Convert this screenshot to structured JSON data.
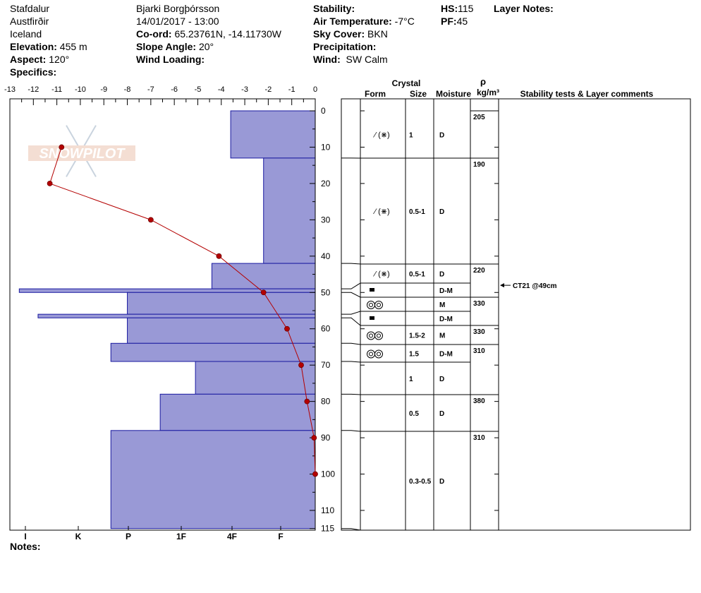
{
  "header": {
    "location": [
      "Stafdalur",
      "Austfirðir",
      "Iceland"
    ],
    "elevation_label": "Elevation:",
    "elevation": "455 m",
    "aspect_label": "Aspect:",
    "aspect": "120°",
    "specifics_label": "Specifics:",
    "observer": "Bjarki Borgþórsson",
    "datetime": "14/01/2017 - 13:00",
    "coord_label": "Co-ord:",
    "coord": "65.23761N, -14.11730W",
    "slope_label": "Slope Angle:",
    "slope": "20°",
    "wind_loading_label": "Wind Loading:",
    "stability_label": "Stability:",
    "air_temp_label": "Air Temperature:",
    "air_temp": "-7°C",
    "sky_label": "Sky Cover:",
    "sky": "BKN",
    "precip_label": "Precipitation:",
    "wind_label": "Wind:",
    "wind": "SW Calm",
    "hs_label": "HS:",
    "hs": "115",
    "pf_label": "PF:",
    "pf": "45",
    "layer_notes_label": "Layer Notes:",
    "notes_label": "Notes:"
  },
  "watermark": "SNOWPILOT",
  "colors": {
    "hardness_fill": "#9999d6",
    "hardness_stroke": "#1a1aa0",
    "temp": "#b40000"
  },
  "table_headers": {
    "crystal": "Crystal",
    "form": "Form",
    "size": "Size",
    "moisture": "Moisture",
    "rho": "ρ",
    "density_unit": "kg/m³",
    "comments": "Stability tests & Layer comments"
  },
  "chart_data": {
    "type": "snow-profile",
    "temp_axis": {
      "ticks": [
        "-13",
        "-12",
        "-11",
        "-10",
        "-9",
        "-8",
        "-7",
        "-6",
        "-5",
        "-4",
        "-3",
        "-2",
        "-1",
        "0"
      ],
      "range": [
        -13,
        0
      ]
    },
    "depth_axis": {
      "ticks": [
        "0",
        "10",
        "20",
        "30",
        "40",
        "50",
        "60",
        "70",
        "80",
        "90",
        "100",
        "110",
        "115"
      ],
      "range": [
        0,
        115
      ]
    },
    "hardness_axis": {
      "labels": [
        "I",
        "K",
        "P",
        "1F",
        "4F",
        "F"
      ]
    },
    "hardness_layers": [
      {
        "top": 0,
        "bottom": 13,
        "hardness": -3.6
      },
      {
        "top": 13,
        "bottom": 42,
        "hardness": -2.2
      },
      {
        "top": 42,
        "bottom": 49,
        "hardness": -4.4
      },
      {
        "top": 49,
        "bottom": 50,
        "hardness": -12.6
      },
      {
        "top": 50,
        "bottom": 56,
        "hardness": -8.0
      },
      {
        "top": 56,
        "bottom": 57,
        "hardness": -11.8
      },
      {
        "top": 57,
        "bottom": 64,
        "hardness": -8.0
      },
      {
        "top": 64,
        "bottom": 69,
        "hardness": -8.7
      },
      {
        "top": 69,
        "bottom": 78,
        "hardness": -5.1
      },
      {
        "top": 78,
        "bottom": 88,
        "hardness": -6.6
      },
      {
        "top": 88,
        "bottom": 115,
        "hardness": -8.7
      }
    ],
    "temperature_profile": [
      {
        "depth": 10,
        "temp": -10.8
      },
      {
        "depth": 20,
        "temp": -11.3
      },
      {
        "depth": 30,
        "temp": -7.0
      },
      {
        "depth": 40,
        "temp": -4.1
      },
      {
        "depth": 50,
        "temp": -2.2
      },
      {
        "depth": 60,
        "temp": -1.2
      },
      {
        "depth": 70,
        "temp": -0.6
      },
      {
        "depth": 80,
        "temp": -0.35
      },
      {
        "depth": 90,
        "temp": -0.05
      },
      {
        "depth": 100,
        "temp": 0
      }
    ],
    "layers": [
      {
        "top": 0,
        "bottom": 13,
        "form": "⁄ (⋇)",
        "size": "1",
        "moisture": "D",
        "density": "205"
      },
      {
        "top": 13,
        "bottom": 42,
        "form": "⁄ (⋇)",
        "size": "0.5-1",
        "moisture": "D",
        "density": "190"
      },
      {
        "top": 42,
        "bottom": 49,
        "form": "⁄ (⋇)",
        "size": "0.5-1",
        "moisture": "D",
        "density": "220"
      },
      {
        "top": 49,
        "bottom": 50,
        "form": "■",
        "size": "",
        "moisture": "D-M",
        "density": ""
      },
      {
        "top": 50,
        "bottom": 56,
        "form": "◎◎",
        "size": "",
        "moisture": "M",
        "density": "330"
      },
      {
        "top": 56,
        "bottom": 57,
        "form": "■",
        "size": "",
        "moisture": "D-M",
        "density": ""
      },
      {
        "top": 57,
        "bottom": 64,
        "form": "◎◎",
        "size": "1.5-2",
        "moisture": "M",
        "density": "330"
      },
      {
        "top": 64,
        "bottom": 69,
        "form": "◎◎",
        "size": "1.5",
        "moisture": "D-M",
        "density": "310"
      },
      {
        "top": 69,
        "bottom": 78,
        "form": "",
        "size": "1",
        "moisture": "D",
        "density": ""
      },
      {
        "top": 78,
        "bottom": 88,
        "form": "",
        "size": "0.5",
        "moisture": "D",
        "density": "380"
      },
      {
        "top": 88,
        "bottom": 115,
        "form": "",
        "size": "0.3-0.5",
        "moisture": "D",
        "density": "310"
      }
    ],
    "stability_tests": [
      {
        "depth": 49,
        "label": "CT21 @49cm"
      }
    ]
  }
}
